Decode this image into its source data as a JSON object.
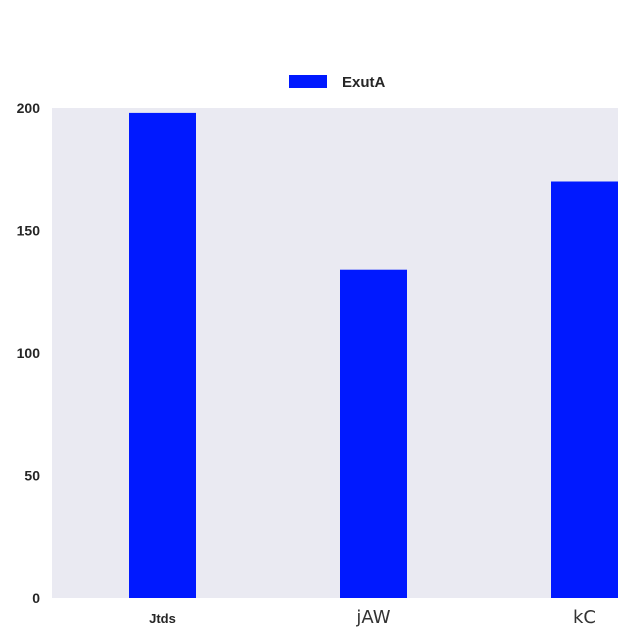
{
  "chart_data": {
    "type": "bar",
    "categories": [
      "Jtds",
      "jAW",
      "kC"
    ],
    "series": [
      {
        "name": "ExutA",
        "values": [
          198,
          134,
          170
        ]
      }
    ],
    "ylim": [
      0,
      200
    ],
    "yticks": [
      0,
      50,
      100,
      150,
      200
    ],
    "title": "",
    "xlabel": "",
    "ylabel": "",
    "grid": false,
    "legend": "top-center",
    "colors": {
      "bar": "#0019ff",
      "plot_background": "#eaeaf2",
      "text": "#262626"
    }
  }
}
